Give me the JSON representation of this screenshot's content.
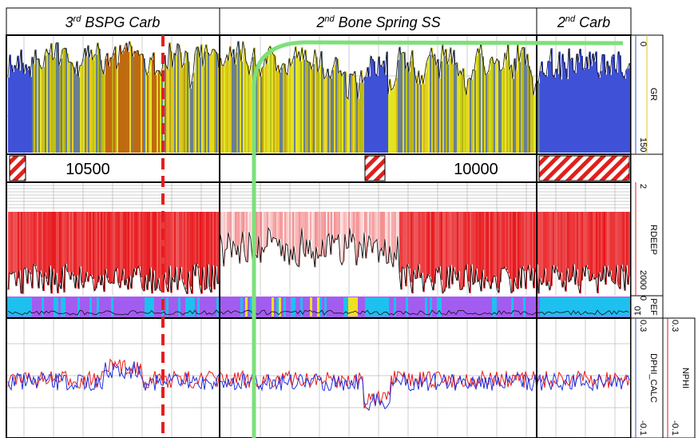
{
  "zones": [
    {
      "ordinal": "3",
      "suffix": "rd",
      "name": "BSPG Carb"
    },
    {
      "ordinal": "2",
      "suffix": "nd",
      "name": "Bone Spring SS"
    },
    {
      "ordinal": "2",
      "suffix": "nd",
      "name": "Carb"
    }
  ],
  "depths": [
    "10500",
    "10000"
  ],
  "tracks": [
    {
      "name": "GR",
      "top": "0",
      "bottom": "150"
    },
    {
      "name": "RDEEP",
      "top": "2",
      "bottom": "2000"
    },
    {
      "name": "PEF",
      "top": "10",
      "bottom": "0"
    },
    {
      "name": "DPHI_CALC",
      "top": "0.3",
      "bottom": "-0.1"
    },
    {
      "name": "NPHI",
      "top": "0.3",
      "bottom": "-0.1"
    }
  ]
}
